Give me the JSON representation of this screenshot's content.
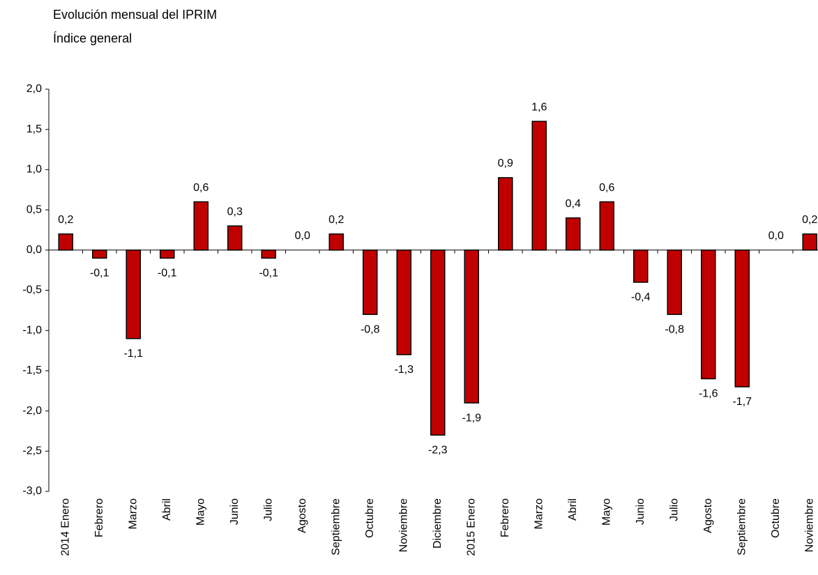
{
  "chart_data": {
    "type": "bar",
    "title": "Evolución mensual del IPRIM",
    "subtitle": "Índice general",
    "categories": [
      "2014 Enero",
      "Febrero",
      "Marzo",
      "Abril",
      "Mayo",
      "Junio",
      "Julio",
      "Agosto",
      "Septiembre",
      "Octubre",
      "Noviembre",
      "Diciembre",
      "2015 Enero",
      "Febrero",
      "Marzo",
      "Abril",
      "Mayo",
      "Junio",
      "Julio",
      "Agosto",
      "Septiembre",
      "Octubre",
      "Noviembre"
    ],
    "values": [
      0.2,
      -0.1,
      -1.1,
      -0.1,
      0.6,
      0.3,
      -0.1,
      0.0,
      0.2,
      -0.8,
      -1.3,
      -2.3,
      -1.9,
      0.9,
      1.6,
      0.4,
      0.6,
      -0.4,
      -0.8,
      -1.6,
      -1.7,
      0.0,
      0.2
    ],
    "value_labels": [
      "0,2",
      "-0,1",
      "-1,1",
      "-0,1",
      "0,6",
      "0,3",
      "-0,1",
      "0,0",
      "0,2",
      "-0,8",
      "-1,3",
      "-2,3",
      "-1,9",
      "0,9",
      "1,6",
      "0,4",
      "0,6",
      "-0,4",
      "-0,8",
      "-1,6",
      "-1,7",
      "0,0",
      "0,2"
    ],
    "color": "#c00000",
    "ylim": [
      -3.0,
      2.0
    ],
    "yticks": [
      {
        "value": 2.0,
        "label": "2,0"
      },
      {
        "value": 1.5,
        "label": "1,5"
      },
      {
        "value": 1.0,
        "label": "1,0"
      },
      {
        "value": 0.5,
        "label": "0,5"
      },
      {
        "value": 0.0,
        "label": "0,0"
      },
      {
        "value": -0.5,
        "label": "-0,5"
      },
      {
        "value": -1.0,
        "label": "-1,0"
      },
      {
        "value": -1.5,
        "label": "-1,5"
      },
      {
        "value": -2.0,
        "label": "-2,0"
      },
      {
        "value": -2.5,
        "label": "-2,5"
      },
      {
        "value": -3.0,
        "label": "-3,0"
      }
    ]
  }
}
